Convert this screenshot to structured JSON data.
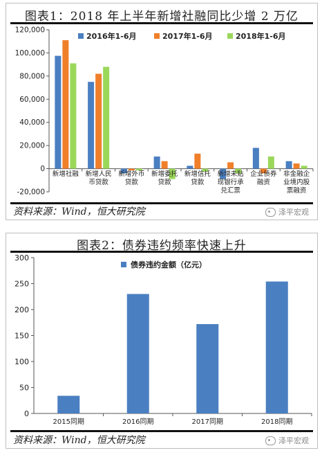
{
  "colors": {
    "s2016": "#4a7fc1",
    "s2017": "#f07f2a",
    "s2018": "#9bd85a",
    "bar": "#4a7fc1"
  },
  "figure1": {
    "title": "图表1：2018 年上半年新增社融同比少增 2 万亿",
    "source": "资料来源：Wind，恒大研究院",
    "watermark": "泽平宏观",
    "chart_data": {
      "type": "bar",
      "categories": [
        [
          "新增社融"
        ],
        [
          "新增人民",
          "币贷款"
        ],
        [
          "新增外币",
          "贷款"
        ],
        [
          "新增委托",
          "贷款"
        ],
        [
          "新增信托",
          "贷款"
        ],
        [
          "新增未贴",
          "现银行承",
          "兑汇票"
        ],
        [
          "企业债券",
          "融资"
        ],
        [
          "非金融企",
          "业境内股",
          "票融资"
        ]
      ],
      "series": [
        {
          "name": "2016年1-6月",
          "values": [
            97500,
            75000,
            -4000,
            10500,
            2500,
            -9000,
            18000,
            6500
          ]
        },
        {
          "name": "2017年1-6月",
          "values": [
            111000,
            82000,
            -1500,
            6500,
            13000,
            5500,
            -4000,
            4500
          ]
        },
        {
          "name": "2018年1-6月",
          "values": [
            91000,
            88000,
            -1500,
            -9000,
            -2500,
            -4000,
            10500,
            2500
          ]
        }
      ],
      "ylim": [
        -20000,
        120000
      ],
      "yticks": [
        "120,000",
        "100,000",
        "80,000",
        "60,000",
        "40,000",
        "20,000",
        "0",
        "-20,000"
      ],
      "ytick_values": [
        120000,
        100000,
        80000,
        60000,
        40000,
        20000,
        0,
        -20000
      ],
      "legend_position": "top",
      "grid": false
    }
  },
  "figure2": {
    "title": "图表2：债券违约频率快速上升",
    "source": "资料来源：Wind，恒大研究院",
    "watermark": "泽平宏观",
    "chart_data": {
      "type": "bar",
      "categories": [
        "2015同期",
        "2016同期",
        "2017同期",
        "2018同期"
      ],
      "series": [
        {
          "name": "债券违约金额（亿元）",
          "values": [
            34,
            230,
            172,
            254
          ]
        }
      ],
      "ylim": [
        0,
        300
      ],
      "yticks": [
        "300",
        "250",
        "200",
        "150",
        "100",
        "50",
        "0"
      ],
      "ytick_values": [
        300,
        250,
        200,
        150,
        100,
        50,
        0
      ],
      "legend_position": "top",
      "grid": false
    }
  }
}
